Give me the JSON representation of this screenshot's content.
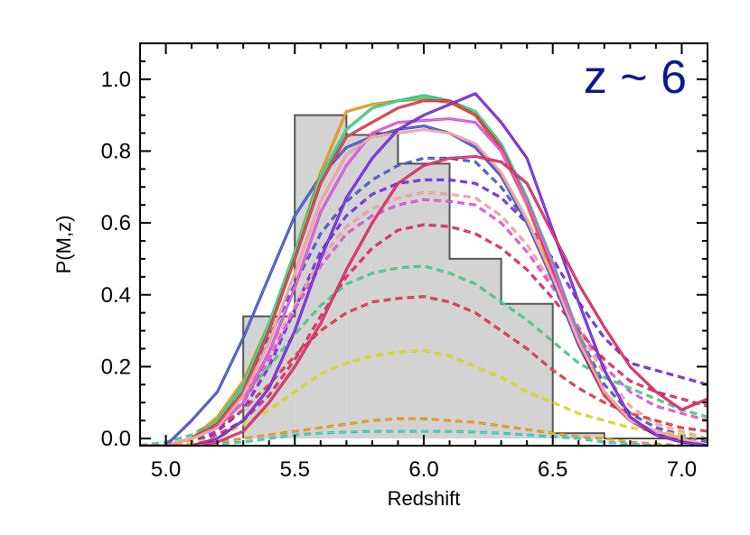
{
  "chart_data": {
    "type": "line",
    "xlabel": "Redshift",
    "ylabel": "P(M,z)",
    "xlim": [
      4.9,
      7.1
    ],
    "ylim": [
      -0.02,
      1.1
    ],
    "xticks": [
      {
        "value": 5.0,
        "label": "5.0"
      },
      {
        "value": 5.5,
        "label": "5.5"
      },
      {
        "value": 6.0,
        "label": "6.0"
      },
      {
        "value": 6.5,
        "label": "6.5"
      },
      {
        "value": 7.0,
        "label": "7.0"
      }
    ],
    "yticks": [
      {
        "value": 0.0,
        "label": "0.0"
      },
      {
        "value": 0.2,
        "label": "0.2"
      },
      {
        "value": 0.4,
        "label": "0.4"
      },
      {
        "value": 0.6,
        "label": "0.6"
      },
      {
        "value": 0.8,
        "label": "0.8"
      },
      {
        "value": 1.0,
        "label": "1.0"
      }
    ],
    "annotation": {
      "text": "z ~ 6",
      "color": "#0a1a8c"
    },
    "histogram": {
      "fill": "#d3d3d3",
      "edge": "#555555",
      "bins": [
        {
          "x0": 5.3,
          "x1": 5.5,
          "y": 0.34
        },
        {
          "x0": 5.5,
          "x1": 5.7,
          "y": 0.9
        },
        {
          "x0": 5.7,
          "x1": 5.8,
          "y": 0.845
        },
        {
          "x0": 5.8,
          "x1": 5.9,
          "y": 0.85
        },
        {
          "x0": 5.9,
          "x1": 6.1,
          "y": 0.765
        },
        {
          "x0": 6.1,
          "x1": 6.3,
          "y": 0.5
        },
        {
          "x0": 6.3,
          "x1": 6.5,
          "y": 0.375
        },
        {
          "x0": 6.5,
          "x1": 6.7,
          "y": 0.015
        },
        {
          "x0": 6.7,
          "x1": 7.1,
          "y": 0.0
        }
      ]
    },
    "x": [
      4.9,
      5.0,
      5.1,
      5.2,
      5.3,
      5.4,
      5.5,
      5.6,
      5.7,
      5.8,
      5.9,
      6.0,
      6.1,
      6.2,
      6.3,
      6.4,
      6.5,
      6.6,
      6.7,
      6.8,
      6.9,
      7.0,
      7.1
    ],
    "series": [
      {
        "color": "#3040c0",
        "style": "solid",
        "values": [
          -0.02,
          -0.02,
          0.05,
          0.13,
          0.28,
          0.45,
          0.62,
          0.73,
          0.81,
          0.84,
          0.86,
          0.87,
          0.85,
          0.81,
          0.73,
          0.6,
          0.44,
          0.26,
          0.12,
          0.05,
          0.01,
          -0.01,
          -0.02
        ]
      },
      {
        "color": "#dd8800",
        "style": "solid",
        "values": [
          -0.02,
          -0.02,
          0.0,
          0.06,
          0.16,
          0.32,
          0.52,
          0.74,
          0.91,
          0.93,
          0.94,
          0.945,
          0.935,
          0.9,
          0.8,
          0.65,
          0.46,
          0.27,
          0.13,
          0.05,
          0.01,
          -0.01,
          -0.02
        ]
      },
      {
        "color": "#20c0b0",
        "style": "solid",
        "values": [
          -0.02,
          -0.02,
          0.0,
          0.04,
          0.14,
          0.3,
          0.5,
          0.72,
          0.86,
          0.92,
          0.94,
          0.955,
          0.94,
          0.91,
          0.82,
          0.67,
          0.48,
          0.28,
          0.12,
          0.05,
          0.01,
          0.0,
          -0.02
        ]
      },
      {
        "color": "#2ec070",
        "style": "solid",
        "values": [
          -0.02,
          -0.02,
          0.0,
          0.05,
          0.15,
          0.32,
          0.52,
          0.73,
          0.86,
          0.92,
          0.94,
          0.95,
          0.94,
          0.91,
          0.82,
          0.67,
          0.49,
          0.29,
          0.13,
          0.05,
          0.01,
          0.0,
          -0.02
        ]
      },
      {
        "color": "#d02030",
        "style": "solid",
        "values": [
          -0.02,
          -0.02,
          0.0,
          0.04,
          0.13,
          0.3,
          0.5,
          0.71,
          0.84,
          0.88,
          0.92,
          0.94,
          0.94,
          0.9,
          0.81,
          0.66,
          0.47,
          0.27,
          0.12,
          0.05,
          0.01,
          0.0,
          -0.02
        ]
      },
      {
        "color": "#d040d0",
        "style": "solid",
        "values": [
          -0.02,
          -0.02,
          0.0,
          0.03,
          0.1,
          0.24,
          0.42,
          0.63,
          0.76,
          0.85,
          0.88,
          0.885,
          0.89,
          0.88,
          0.8,
          0.66,
          0.48,
          0.28,
          0.13,
          0.05,
          0.02,
          0.0,
          -0.02
        ]
      },
      {
        "color": "#f09090",
        "style": "solid",
        "values": [
          -0.02,
          -0.02,
          0.0,
          0.03,
          0.12,
          0.27,
          0.46,
          0.66,
          0.79,
          0.84,
          0.85,
          0.86,
          0.85,
          0.82,
          0.74,
          0.61,
          0.45,
          0.27,
          0.13,
          0.05,
          0.02,
          0.0,
          -0.02
        ]
      },
      {
        "color": "#6010d0",
        "style": "solid",
        "values": [
          -0.02,
          -0.02,
          -0.02,
          0.0,
          0.05,
          0.14,
          0.3,
          0.5,
          0.67,
          0.78,
          0.86,
          0.9,
          0.93,
          0.96,
          0.88,
          0.78,
          0.58,
          0.38,
          0.19,
          0.06,
          0.01,
          -0.01,
          -0.02
        ]
      },
      {
        "color": "#d01050",
        "style": "solid",
        "values": [
          -0.02,
          -0.02,
          -0.02,
          -0.01,
          0.02,
          0.1,
          0.2,
          0.32,
          0.47,
          0.6,
          0.71,
          0.76,
          0.78,
          0.785,
          0.77,
          0.71,
          0.57,
          0.43,
          0.31,
          0.2,
          0.13,
          0.08,
          0.11
        ]
      },
      {
        "color": "#3040c0",
        "style": "dashed",
        "values": [
          -0.02,
          -0.02,
          0.0,
          0.04,
          0.14,
          0.28,
          0.43,
          0.57,
          0.66,
          0.72,
          0.76,
          0.78,
          0.78,
          0.77,
          0.7,
          0.6,
          0.45,
          0.29,
          0.15,
          0.07,
          0.03,
          0.01,
          -0.01
        ]
      },
      {
        "color": "#6010d0",
        "style": "dashed",
        "values": [
          -0.02,
          -0.02,
          -0.01,
          0.02,
          0.08,
          0.2,
          0.36,
          0.52,
          0.62,
          0.68,
          0.71,
          0.72,
          0.72,
          0.71,
          0.67,
          0.6,
          0.5,
          0.38,
          0.28,
          0.21,
          0.19,
          0.17,
          0.15
        ]
      },
      {
        "color": "#f09090",
        "style": "dashed",
        "values": [
          -0.02,
          -0.02,
          0.0,
          0.03,
          0.11,
          0.24,
          0.37,
          0.5,
          0.59,
          0.64,
          0.67,
          0.685,
          0.68,
          0.67,
          0.62,
          0.54,
          0.43,
          0.3,
          0.18,
          0.09,
          0.04,
          0.02,
          0.0
        ]
      },
      {
        "color": "#d040d0",
        "style": "dashed",
        "values": [
          -0.02,
          -0.02,
          0.0,
          0.03,
          0.1,
          0.22,
          0.36,
          0.48,
          0.57,
          0.62,
          0.65,
          0.665,
          0.66,
          0.65,
          0.6,
          0.52,
          0.42,
          0.31,
          0.2,
          0.13,
          0.09,
          0.07,
          0.05
        ]
      },
      {
        "color": "#d01050",
        "style": "dashed",
        "values": [
          -0.02,
          -0.02,
          -0.01,
          0.01,
          0.05,
          0.12,
          0.22,
          0.34,
          0.45,
          0.53,
          0.58,
          0.595,
          0.59,
          0.57,
          0.53,
          0.47,
          0.39,
          0.3,
          0.22,
          0.16,
          0.13,
          0.11,
          0.09
        ]
      },
      {
        "color": "#2ec070",
        "style": "dashed",
        "values": [
          -0.02,
          -0.01,
          0.01,
          0.05,
          0.12,
          0.2,
          0.29,
          0.37,
          0.43,
          0.46,
          0.475,
          0.48,
          0.46,
          0.43,
          0.38,
          0.33,
          0.27,
          0.21,
          0.17,
          0.14,
          0.11,
          0.08,
          0.06
        ]
      },
      {
        "color": "#d02030",
        "style": "dashed",
        "values": [
          -0.02,
          -0.02,
          0.0,
          0.03,
          0.08,
          0.15,
          0.23,
          0.3,
          0.35,
          0.38,
          0.39,
          0.395,
          0.38,
          0.35,
          0.3,
          0.25,
          0.19,
          0.14,
          0.1,
          0.07,
          0.05,
          0.03,
          0.02
        ]
      },
      {
        "color": "#d0d000",
        "style": "dashed",
        "values": [
          -0.02,
          -0.02,
          -0.01,
          0.0,
          0.04,
          0.08,
          0.13,
          0.18,
          0.21,
          0.23,
          0.24,
          0.245,
          0.23,
          0.2,
          0.17,
          0.13,
          0.1,
          0.07,
          0.05,
          0.03,
          0.02,
          0.01,
          0.0
        ]
      },
      {
        "color": "#dd8800",
        "style": "dashed",
        "values": [
          -0.02,
          -0.02,
          -0.02,
          -0.01,
          0.0,
          0.01,
          0.02,
          0.03,
          0.04,
          0.05,
          0.055,
          0.055,
          0.05,
          0.045,
          0.035,
          0.025,
          0.015,
          0.005,
          0.0,
          -0.01,
          -0.015,
          -0.02,
          -0.02
        ]
      },
      {
        "color": "#20c0b0",
        "style": "dashed",
        "values": [
          -0.02,
          -0.02,
          -0.02,
          -0.015,
          -0.01,
          0.0,
          0.01,
          0.015,
          0.018,
          0.02,
          0.02,
          0.02,
          0.02,
          0.018,
          0.015,
          0.01,
          0.005,
          0.0,
          -0.01,
          -0.015,
          -0.02,
          -0.02,
          -0.02
        ]
      }
    ]
  }
}
